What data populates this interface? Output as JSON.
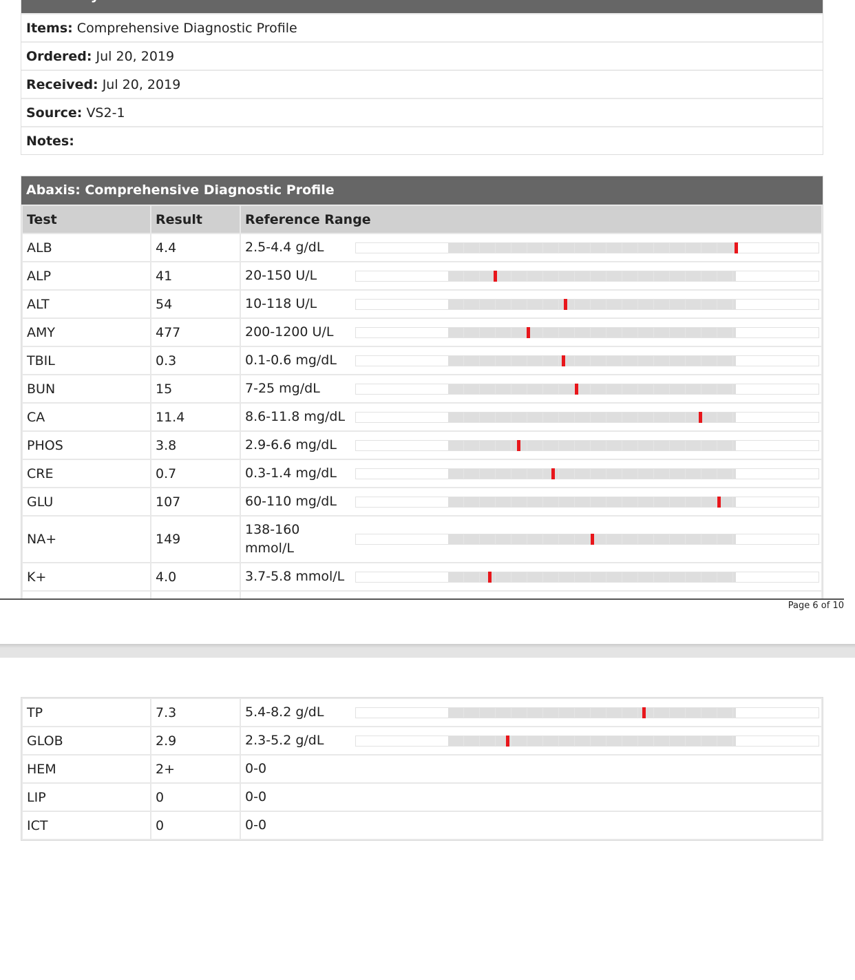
{
  "summary": {
    "title": "Summary",
    "rows": [
      {
        "label": "Items:",
        "value": "Comprehensive Diagnostic Profile"
      },
      {
        "label": "Ordered:",
        "value": "Jul 20, 2019"
      },
      {
        "label": "Received:",
        "value": "Jul 20, 2019"
      },
      {
        "label": "Source:",
        "value": "VS2-1"
      },
      {
        "label": "Notes:",
        "value": ""
      }
    ]
  },
  "profile": {
    "title": "Abaxis: Comprehensive Diagnostic Profile",
    "columns": [
      "Test",
      "Result",
      "Reference Range"
    ],
    "page1_rows": [
      {
        "test": "ALB",
        "result": "4.4",
        "range": "2.5-4.4 g/dL",
        "low": 2.5,
        "high": 4.4,
        "value": 4.4
      },
      {
        "test": "ALP",
        "result": "41",
        "range": "20-150 U/L",
        "low": 20,
        "high": 150,
        "value": 41
      },
      {
        "test": "ALT",
        "result": "54",
        "range": "10-118 U/L",
        "low": 10,
        "high": 118,
        "value": 54
      },
      {
        "test": "AMY",
        "result": "477",
        "range": "200-1200 U/L",
        "low": 200,
        "high": 1200,
        "value": 477
      },
      {
        "test": "TBIL",
        "result": "0.3",
        "range": "0.1-0.6 mg/dL",
        "low": 0.1,
        "high": 0.6,
        "value": 0.3
      },
      {
        "test": "BUN",
        "result": "15",
        "range": "7-25 mg/dL",
        "low": 7,
        "high": 25,
        "value": 15
      },
      {
        "test": "CA",
        "result": "11.4",
        "range": "8.6-11.8 mg/dL",
        "low": 8.6,
        "high": 11.8,
        "value": 11.4
      },
      {
        "test": "PHOS",
        "result": "3.8",
        "range": "2.9-6.6 mg/dL",
        "low": 2.9,
        "high": 6.6,
        "value": 3.8
      },
      {
        "test": "CRE",
        "result": "0.7",
        "range": "0.3-1.4 mg/dL",
        "low": 0.3,
        "high": 1.4,
        "value": 0.7
      },
      {
        "test": "GLU",
        "result": "107",
        "range": "60-110 mg/dL",
        "low": 60,
        "high": 110,
        "value": 107
      },
      {
        "test": "NA+",
        "result": "149",
        "range": "138-160 mmol/L",
        "low": 138,
        "high": 160,
        "value": 149
      },
      {
        "test": "K+",
        "result": "4.0",
        "range": "3.7-5.8 mmol/L",
        "low": 3.7,
        "high": 5.8,
        "value": 4.0
      }
    ],
    "page2_rows": [
      {
        "test": "TP",
        "result": "7.3",
        "range": "5.4-8.2 g/dL",
        "low": 5.4,
        "high": 8.2,
        "value": 7.3
      },
      {
        "test": "GLOB",
        "result": "2.9",
        "range": "2.3-5.2 g/dL",
        "low": 2.3,
        "high": 5.2,
        "value": 2.9
      },
      {
        "test": "HEM",
        "result": "2+",
        "range": "0-0"
      },
      {
        "test": "LIP",
        "result": "0",
        "range": "0-0"
      },
      {
        "test": "ICT",
        "result": "0",
        "range": "0-0"
      }
    ]
  },
  "footer": {
    "page_label": "Page 6 of 10"
  },
  "colors": {
    "header": "#666666",
    "column_header": "#d0d0d0",
    "marker": "#e8161b",
    "range_fill": "#dedede"
  }
}
